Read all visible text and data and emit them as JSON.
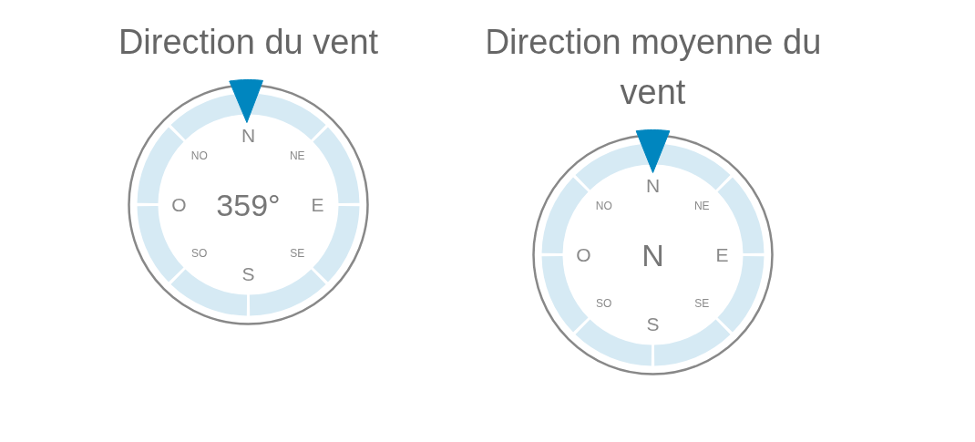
{
  "chart_data": [
    {
      "type": "other",
      "title": "Direction du vent",
      "annotations": [
        "N",
        "NE",
        "E",
        "SE",
        "S",
        "SO",
        "O",
        "NO"
      ],
      "values": [
        359
      ],
      "value_labels": [
        "359°"
      ],
      "color": "#0086bf"
    },
    {
      "type": "other",
      "title": "Direction moyenne du vent",
      "categories": [
        "N",
        "NE",
        "E",
        "SE",
        "S",
        "SO",
        "O",
        "NO"
      ],
      "needle": "N",
      "color": "#0086bf"
    }
  ]
}
